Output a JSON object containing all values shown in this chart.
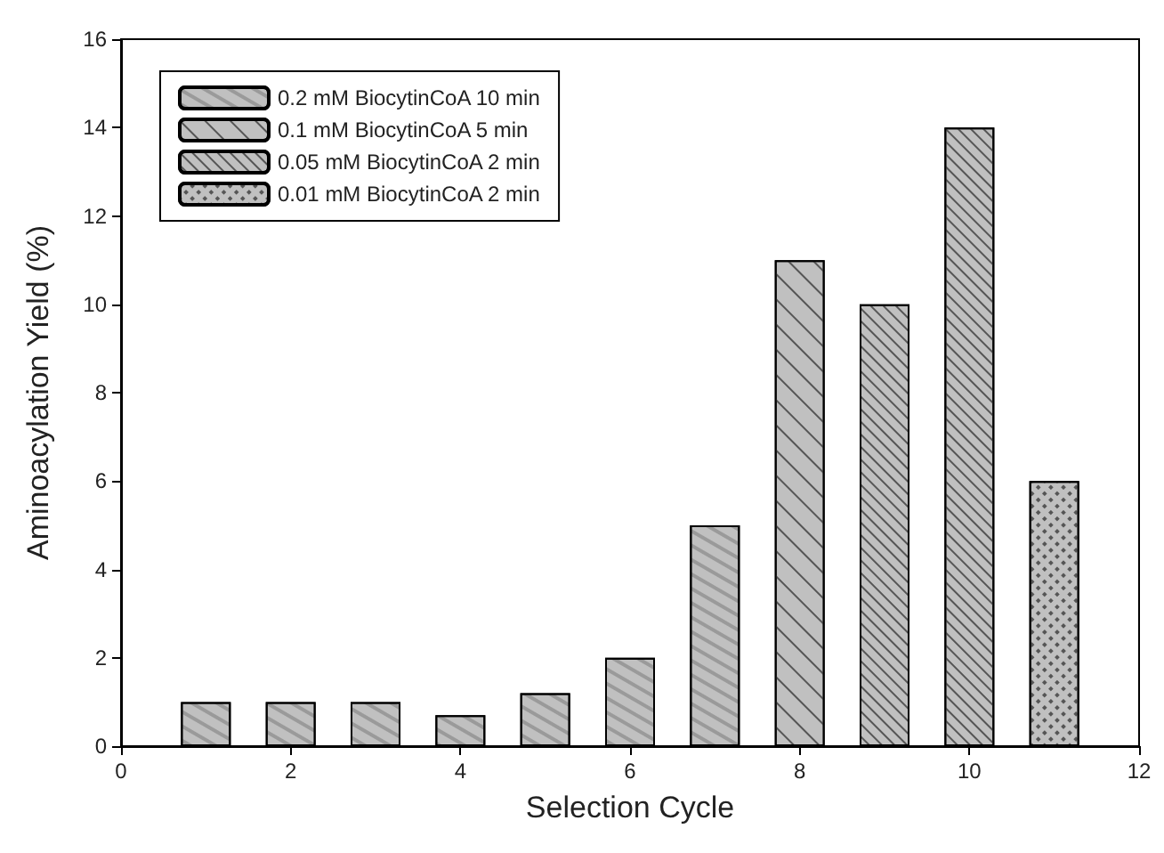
{
  "chart_data": {
    "type": "bar",
    "xlabel": "Selection Cycle",
    "ylabel": "Aminoacylation Yield (%)",
    "xlim": [
      0,
      12
    ],
    "xticks": [
      0,
      2,
      4,
      6,
      8,
      10,
      12
    ],
    "ylim": [
      0,
      16
    ],
    "yticks": [
      0,
      2,
      4,
      6,
      8,
      10,
      12,
      14,
      16
    ],
    "series": [
      {
        "name": "0.2 mM BiocytinCoA 10 min",
        "color": "#c0c0c0",
        "x": [
          1,
          2,
          3,
          4,
          5,
          6,
          7
        ],
        "values": [
          1,
          1,
          1,
          0.7,
          1.2,
          2,
          5
        ]
      },
      {
        "name": "0.1 mM BiocytinCoA 5 min",
        "color": "#c0c0c0",
        "x": [
          8
        ],
        "values": [
          11
        ]
      },
      {
        "name": "0.05 mM BiocytinCoA 2 min",
        "color": "#c0c0c0",
        "x": [
          9,
          10
        ],
        "values": [
          10,
          14
        ]
      },
      {
        "name": "0.01 mM BiocytinCoA 2 min",
        "color": "#c0c0c0",
        "x": [
          11
        ],
        "values": [
          6
        ]
      }
    ],
    "legend": "top left",
    "grid": false
  }
}
